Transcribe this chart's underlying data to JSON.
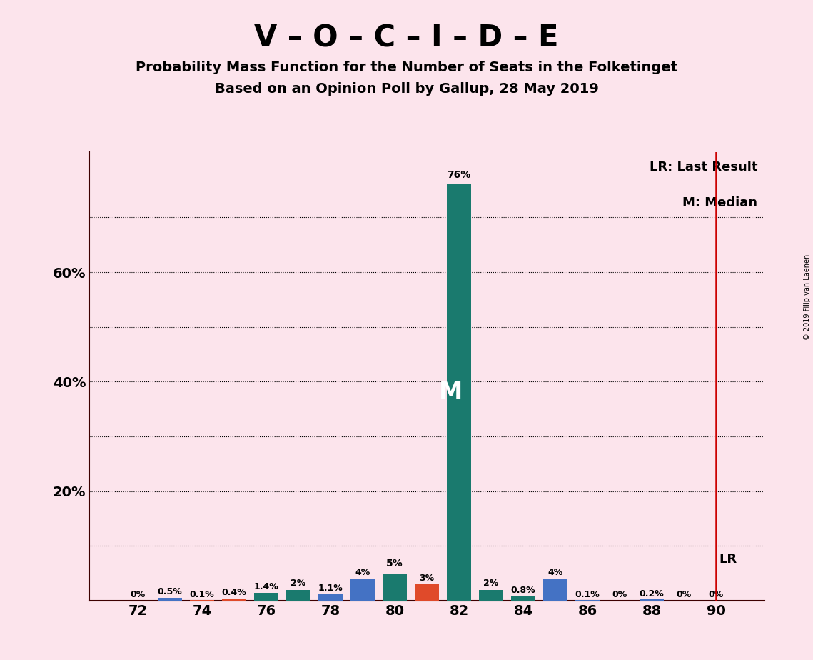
{
  "title_main": "V – O – C – I – D – E",
  "title_sub1": "Probability Mass Function for the Number of Seats in the Folketinget",
  "title_sub2": "Based on an Opinion Poll by Gallup, 28 May 2019",
  "background_color": "#fce4ec",
  "seats": [
    72,
    73,
    74,
    75,
    76,
    77,
    78,
    79,
    80,
    81,
    82,
    83,
    84,
    85,
    86,
    87,
    88,
    89,
    90
  ],
  "values": [
    0.0,
    0.5,
    0.1,
    0.4,
    1.4,
    2.0,
    1.1,
    4.0,
    5.0,
    3.0,
    76.0,
    2.0,
    0.8,
    4.0,
    0.1,
    0.0,
    0.2,
    0.0,
    0.0
  ],
  "labels": [
    "0%",
    "0.5%",
    "0.1%",
    "0.4%",
    "1.4%",
    "2%",
    "1.1%",
    "4%",
    "5%",
    "3%",
    "76%",
    "2%",
    "0.8%",
    "4%",
    "0.1%",
    "0%",
    "0.2%",
    "0%",
    "0%"
  ],
  "colors": [
    "#4472c4",
    "#4472c4",
    "#e04a2a",
    "#e04a2a",
    "#1a7a6e",
    "#1a7a6e",
    "#4472c4",
    "#4472c4",
    "#1a7a6e",
    "#e04a2a",
    "#1a7a6e",
    "#1a7a6e",
    "#1a7a6e",
    "#4472c4",
    "#4472c4",
    "#4472c4",
    "#4472c4",
    "#4472c4",
    "#4472c4"
  ],
  "median_seat": 82,
  "lr_seat": 90,
  "lr_label": "LR",
  "median_label": "M",
  "legend_lr": "LR: Last Result",
  "legend_m": "M: Median",
  "xlim": [
    70.5,
    91.5
  ],
  "ylim": [
    0,
    82
  ],
  "copyright": "© 2019 Filip van Laenen",
  "bar_width": 0.75,
  "yticks_labeled": [
    20,
    40,
    60
  ],
  "yticks_dotted": [
    10,
    20,
    30,
    40,
    50,
    60,
    70
  ],
  "bar_color_teal": "#1a7a6e",
  "bar_color_blue": "#4472c4",
  "bar_color_orange": "#e04a2a"
}
